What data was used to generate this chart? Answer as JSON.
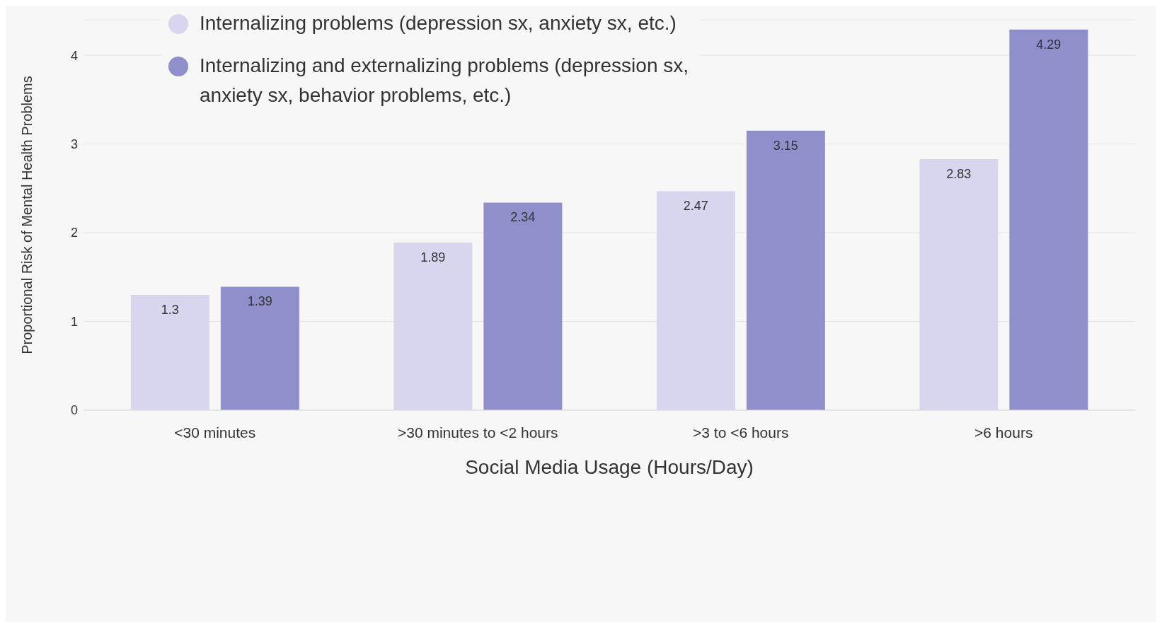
{
  "chart_data": {
    "type": "bar",
    "xlabel": "Social Media Usage (Hours/Day)",
    "ylabel": "Proportional Risk of Mental Health Problems",
    "categories": [
      "<30 minutes",
      ">30 minutes to <2 hours",
      ">3 to <6 hours",
      ">6 hours"
    ],
    "series": [
      {
        "name": "Internalizing problems (depression sx, anxiety sx, etc.)",
        "color": "#d8d6ee",
        "values": [
          1.3,
          1.89,
          2.47,
          2.83
        ]
      },
      {
        "name": "Internalizing and externalizing problems (depression sx, anxiety sx, behavior problems, etc.)",
        "color": "#8f8fcc",
        "values": [
          1.39,
          2.34,
          3.15,
          4.29
        ]
      }
    ],
    "ylim": [
      0,
      4.4
    ],
    "yticks": [
      0,
      1,
      2,
      3,
      4
    ],
    "grid": "y",
    "legend": "top left",
    "data_labels": true
  }
}
